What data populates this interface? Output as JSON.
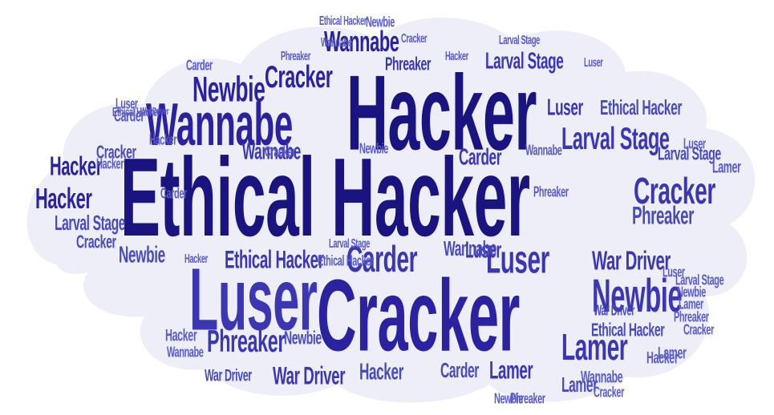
{
  "word_cloud": {
    "background_color": "#ffffff",
    "cloud_fill": "#eeeef8",
    "palette": [
      "#1a1480",
      "#2a22a0",
      "#3b37b2",
      "#4a4bbb",
      "#5a5cc4",
      "#2f2a9a"
    ],
    "words": [
      "Ethical Hacker",
      "Hacker",
      "Cracker",
      "Luser",
      "Wannabe",
      "Newbie",
      "Larval Stage",
      "Lamer",
      "Phreaker",
      "Carder",
      "War Driver"
    ]
  }
}
